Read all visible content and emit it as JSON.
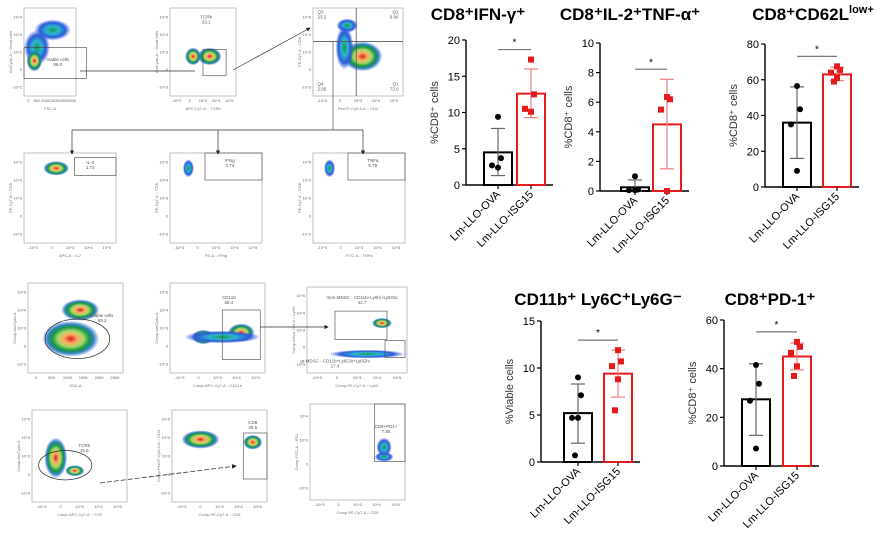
{
  "figure": {
    "flow_panels": [
      {
        "id": "p1",
        "xlabel": "FSC-A",
        "ylabel": "AmCyan-A :: Dead cells",
        "xticks": [
          "0",
          "500",
          "1000",
          "1500",
          "2000",
          "2500"
        ],
        "yticks": [
          "10^4",
          "10^3",
          "10^2",
          "0",
          "-10^2"
        ],
        "gates": [
          {
            "name": "Viable cells",
            "value": "96.0"
          }
        ]
      },
      {
        "id": "p2",
        "xlabel": "APC-Cy7-A :: TCRb",
        "ylabel": "AmCyan-A :: Dead cells",
        "xticks": [
          "-10^2",
          "0",
          "10^3",
          "10^4",
          "10^5"
        ],
        "yticks": [
          "10^5",
          "10^4",
          "10^3",
          "0",
          "-10^3"
        ],
        "gates": [
          {
            "name": "TCRb",
            "value": "33.1"
          }
        ]
      },
      {
        "id": "p3",
        "xlabel": "PerCP-Cy5-5-A :: CD4",
        "ylabel": "PE-Cy7-A :: CD8",
        "xticks": [
          "-10^3",
          "0",
          "10^3",
          "10^4",
          "10^5"
        ],
        "yticks": [
          "10^5",
          "10^4",
          "10^3",
          "0",
          "-10^3"
        ],
        "gates": [
          {
            "name": "Q3",
            "value": "23.2"
          },
          {
            "name": "Q2",
            "value": "0.86"
          },
          {
            "name": "Q4",
            "value": "2.95"
          },
          {
            "name": "Q1",
            "value": "73.0"
          }
        ]
      },
      {
        "id": "p4",
        "xlabel": "APC-A :: IL2",
        "ylabel": "PE-Cy7-A :: CD8",
        "xticks": [
          "-10^2",
          "0",
          "10^3",
          "10^4",
          "10^5"
        ],
        "yticks": [
          "10^5",
          "10^4",
          "10^3",
          "0",
          "-10^3"
        ],
        "gates": [
          {
            "name": "IL-2",
            "value": "1.72"
          }
        ]
      },
      {
        "id": "p5",
        "xlabel": "PE-A :: IFNg",
        "ylabel": "PE-Cy7-A :: CD8",
        "xticks": [
          "-10^3",
          "0",
          "10^3",
          "10^4",
          "10^5"
        ],
        "yticks": [
          "10^5",
          "10^4",
          "10^3",
          "0",
          "-10^3"
        ],
        "gates": [
          {
            "name": "IFNg",
            "value": "3.73"
          }
        ]
      },
      {
        "id": "p6",
        "xlabel": "FITC-A :: TNFa",
        "ylabel": "PE-Cy7-A :: CD8",
        "xticks": [
          "-10^3",
          "0",
          "10^3",
          "10^4",
          "10^5"
        ],
        "yticks": [
          "10^5",
          "10^4",
          "10^3",
          "0",
          "-10^3"
        ],
        "gates": [
          {
            "name": "TNFa",
            "value": "5.79"
          }
        ]
      },
      {
        "id": "p7",
        "xlabel": "SSC-A",
        "ylabel": "Comp-AmCyan-A",
        "xticks": [
          "0",
          "50K",
          "100K",
          "150K",
          "200K",
          "250K"
        ],
        "yticks": [
          "10^5",
          "10^4",
          "10^3",
          "0",
          "-10^3"
        ],
        "gates": [
          {
            "name": "Viable cells",
            "value": "59.2"
          }
        ]
      },
      {
        "id": "p8",
        "xlabel": "Comp-APC-Cy7-A :: CD11b",
        "ylabel": "Comp-AmCyan-A",
        "xticks": [
          "-10^3",
          "0",
          "10^3",
          "10^4",
          "10^5"
        ],
        "yticks": [
          "10^5",
          "10^4",
          "10^3",
          "0",
          "-10^3"
        ],
        "gates": [
          {
            "name": "CD11b",
            "value": "59.4"
          }
        ]
      },
      {
        "id": "p9",
        "xlabel": "Comp-PE-Cy7-A :: Ly6C",
        "ylabel": "Comp-Alexa 700-A :: Ly6G",
        "xticks": [
          "-10^3",
          "0",
          "10^3",
          "10^4",
          "10^5"
        ],
        "yticks": [
          "10^5",
          "10^4",
          "10^3",
          "0",
          "-10^3"
        ],
        "gates": [
          {
            "name": "mon-MDSC - CD11b+Ly6hi+Ly6Glo",
            "value": "42.7"
          },
          {
            "name": "gr-MDSC - CD11b+Ly6Clo+Ly6Ghi",
            "value": "17.4"
          }
        ]
      },
      {
        "id": "p10",
        "xlabel": "Comp-APC-Cy7-A :: TCR",
        "ylabel": "Comp-AmCyan-A",
        "xticks": [
          "-10^3",
          "0",
          "10^3",
          "10^4",
          "10^5"
        ],
        "yticks": [
          "10^5",
          "10^4",
          "10^3",
          "0",
          "-10^3"
        ],
        "gates": [
          {
            "name": "TCRb",
            "value": "15.6"
          }
        ]
      },
      {
        "id": "p11",
        "xlabel": "Comp-PE-Cy7-A :: CD8",
        "ylabel": "Comp-PerCP-Cy5-5-A :: CD4",
        "xticks": [
          "-10^3",
          "0",
          "10^3",
          "10^4",
          "10^5"
        ],
        "yticks": [
          "10^5",
          "10^4",
          "10^3",
          "0",
          "-10^3"
        ],
        "gates": [
          {
            "name": "CD8",
            "value": "29.5"
          }
        ]
      },
      {
        "id": "p12",
        "xlabel": "Comp-PE-Cy7-A :: CD8",
        "ylabel": "Comp-FITC-A :: PD1",
        "xticks": [
          "-10^3",
          "0",
          "10^3",
          "10^4",
          "10^5"
        ],
        "yticks": [
          "10^4",
          "10^3",
          "0",
          "-10^3"
        ],
        "gates": [
          {
            "name": "CD8+PD1+",
            "value": "7.86"
          }
        ]
      }
    ]
  },
  "chart_data": [
    {
      "type": "bar",
      "title": "CD8⁺IFN-γ⁺",
      "ylabel": "%CD8⁺ cells",
      "xlabel": "",
      "categories": [
        "Lm-LLO-OVA",
        "Lm-LLO-ISG15"
      ],
      "ylim": [
        0,
        20
      ],
      "yticks": [
        "0",
        "5",
        "10",
        "15",
        "20"
      ],
      "series": [
        {
          "name": "Lm-LLO-OVA",
          "mean": 4.5,
          "sd_low": 1.3,
          "sd_high": 7.8,
          "points": [
            9.4,
            3.7,
            2.7,
            2.4
          ],
          "color": "#000000",
          "marker": "circle"
        },
        {
          "name": "Lm-LLO-ISG15",
          "mean": 12.6,
          "sd_low": 9.3,
          "sd_high": 16.0,
          "points": [
            17.3,
            12.5,
            10.5,
            10.1
          ],
          "color": "#e41a1c",
          "marker": "square"
        }
      ],
      "significance": "*",
      "grid": false
    },
    {
      "type": "bar",
      "title": "CD8⁺IL-2⁺TNF-α⁺",
      "ylabel": "%CD8⁺ cells",
      "xlabel": "",
      "categories": [
        "Lm-LLO-OVA",
        "Lm-LLO-ISG15"
      ],
      "ylim": [
        0,
        10
      ],
      "yticks": [
        "0",
        "2",
        "4",
        "6",
        "8",
        "10"
      ],
      "series": [
        {
          "name": "Lm-LLO-OVA",
          "mean": 0.25,
          "sd_low": 0.0,
          "sd_high": 0.75,
          "points": [
            1.0,
            0.1,
            0.05,
            0.05
          ],
          "color": "#000000",
          "marker": "circle"
        },
        {
          "name": "Lm-LLO-ISG15",
          "mean": 4.5,
          "sd_low": 1.5,
          "sd_high": 7.55,
          "points": [
            6.35,
            6.2,
            5.5,
            0.0
          ],
          "color": "#e41a1c",
          "marker": "square"
        }
      ],
      "significance": "*",
      "grid": false
    },
    {
      "type": "bar",
      "title": "CD8⁺CD62L",
      "title_sup": "low+",
      "ylabel": "%CD8⁺ cells",
      "xlabel": "",
      "categories": [
        "Lm-LLO-OVA",
        "Lm-LLO-ISG15"
      ],
      "ylim": [
        0,
        80
      ],
      "yticks": [
        "0",
        "20",
        "40",
        "60",
        "80"
      ],
      "series": [
        {
          "name": "Lm-LLO-OVA",
          "mean": 36,
          "sd_low": 16,
          "sd_high": 56,
          "points": [
            56.5,
            43.5,
            35,
            9
          ],
          "color": "#000000",
          "marker": "circle"
        },
        {
          "name": "Lm-LLO-ISG15",
          "mean": 63,
          "sd_low": 59.5,
          "sd_high": 67,
          "points": [
            67.5,
            65.5,
            64,
            61,
            59
          ],
          "color": "#e41a1c",
          "marker": "square"
        }
      ],
      "significance": "*",
      "grid": false
    },
    {
      "type": "bar",
      "title": "CD11b⁺ Ly6C⁺Ly6G⁻",
      "ylabel": "%Viable cells",
      "xlabel": "",
      "categories": [
        "Lm-LLO-OVA",
        "Lm-LLO-ISG15"
      ],
      "ylim": [
        0,
        15
      ],
      "yticks": [
        "0",
        "5",
        "10",
        "15"
      ],
      "series": [
        {
          "name": "Lm-LLO-OVA",
          "mean": 5.2,
          "sd_low": 2.0,
          "sd_high": 8.3,
          "points": [
            9.0,
            7.1,
            4.7,
            4.7,
            0.7
          ],
          "color": "#000000",
          "marker": "circle"
        },
        {
          "name": "Lm-LLO-ISG15",
          "mean": 9.4,
          "sd_low": 6.9,
          "sd_high": 11.9,
          "points": [
            11.9,
            10.7,
            10.2,
            8.8,
            5.5
          ],
          "color": "#e41a1c",
          "marker": "square"
        }
      ],
      "significance": "*",
      "grid": false
    },
    {
      "type": "bar",
      "title": "CD8⁺PD-1⁺",
      "ylabel": "%CD8⁺ cells",
      "xlabel": "",
      "categories": [
        "Lm-LLO-OVA",
        "Lm-LLO-ISG15"
      ],
      "ylim": [
        0,
        60
      ],
      "yticks": [
        "0",
        "20",
        "40",
        "60"
      ],
      "series": [
        {
          "name": "Lm-LLO-OVA",
          "mean": 27.4,
          "sd_low": 12.6,
          "sd_high": 42,
          "points": [
            41.5,
            33.8,
            26.8,
            7.2
          ],
          "color": "#000000",
          "marker": "circle"
        },
        {
          "name": "Lm-LLO-ISG15",
          "mean": 45,
          "sd_low": 39.5,
          "sd_high": 50.5,
          "points": [
            51,
            49,
            46.5,
            41,
            37
          ],
          "color": "#e41a1c",
          "marker": "square"
        }
      ],
      "significance": "*",
      "grid": false
    }
  ]
}
